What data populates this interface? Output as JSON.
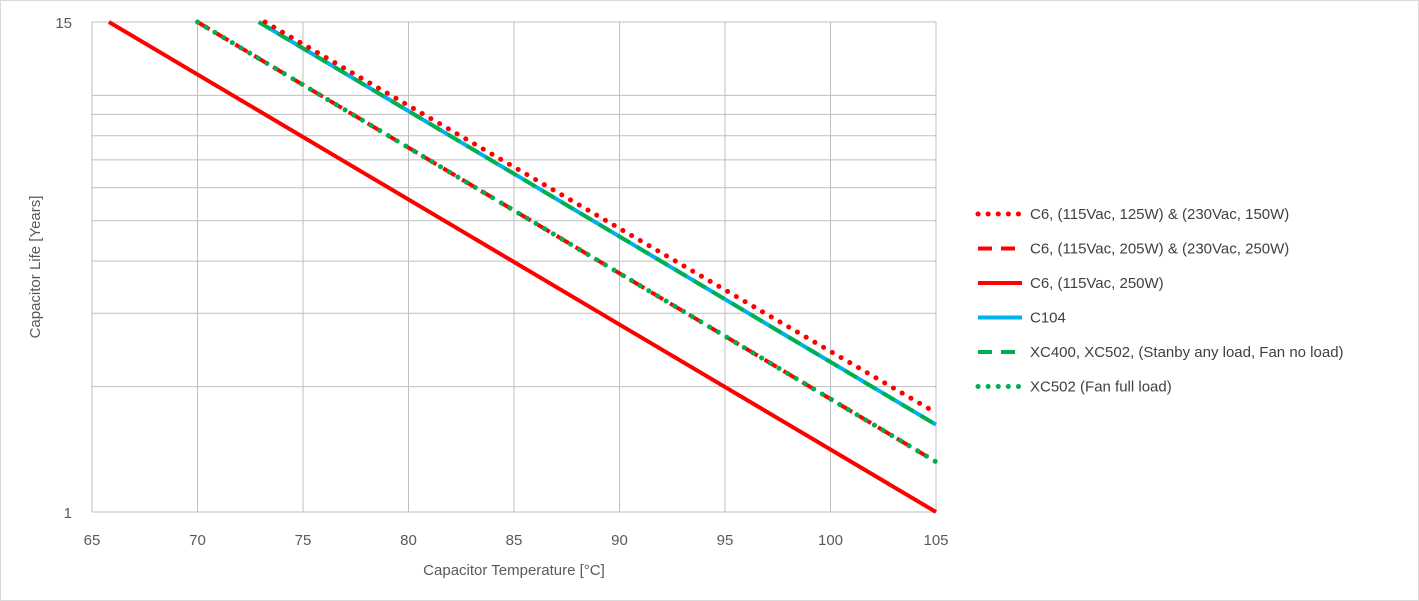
{
  "chart_data": {
    "type": "line",
    "title": "",
    "xlabel": "Capacitor Temperature [°C]",
    "ylabel": "Capacitor Life [Years]",
    "xlim": [
      65,
      105
    ],
    "ylim": [
      1,
      15
    ],
    "y_scale": "log",
    "x_ticks": [
      "65",
      "70",
      "75",
      "80",
      "85",
      "90",
      "95",
      "100",
      "105"
    ],
    "y_ticks": [
      "1",
      "15"
    ],
    "grid": true,
    "legend_position": "right",
    "series": [
      {
        "name": "C6, (115Vac, 125W) & (230Vac, 150W)",
        "color": "#ff0000",
        "style": "dotted",
        "x": [
          73.2,
          105
        ],
        "y": [
          15,
          1.73
        ]
      },
      {
        "name": "C6, (115Vac, 205W) & (230Vac, 250W)",
        "color": "#ff0000",
        "style": "dashed",
        "x": [
          70,
          105
        ],
        "y": [
          15,
          1.32
        ]
      },
      {
        "name": "C6, (115Vac, 250W)",
        "color": "#ff0000",
        "style": "solid",
        "x": [
          65.8,
          105
        ],
        "y": [
          15,
          1.0
        ]
      },
      {
        "name": "C104",
        "color": "#00b0f0",
        "style": "solid",
        "x": [
          72.9,
          105
        ],
        "y": [
          15,
          1.62
        ]
      },
      {
        "name": "XC400, XC502, (Stanby any load, Fan no load)",
        "color": "#00b050",
        "style": "dashed",
        "x": [
          72.9,
          105
        ],
        "y": [
          15,
          1.62
        ]
      },
      {
        "name": "XC502 (Fan full load)",
        "color": "#00b050",
        "style": "dotted",
        "x": [
          70,
          105
        ],
        "y": [
          15,
          1.32
        ]
      }
    ]
  }
}
